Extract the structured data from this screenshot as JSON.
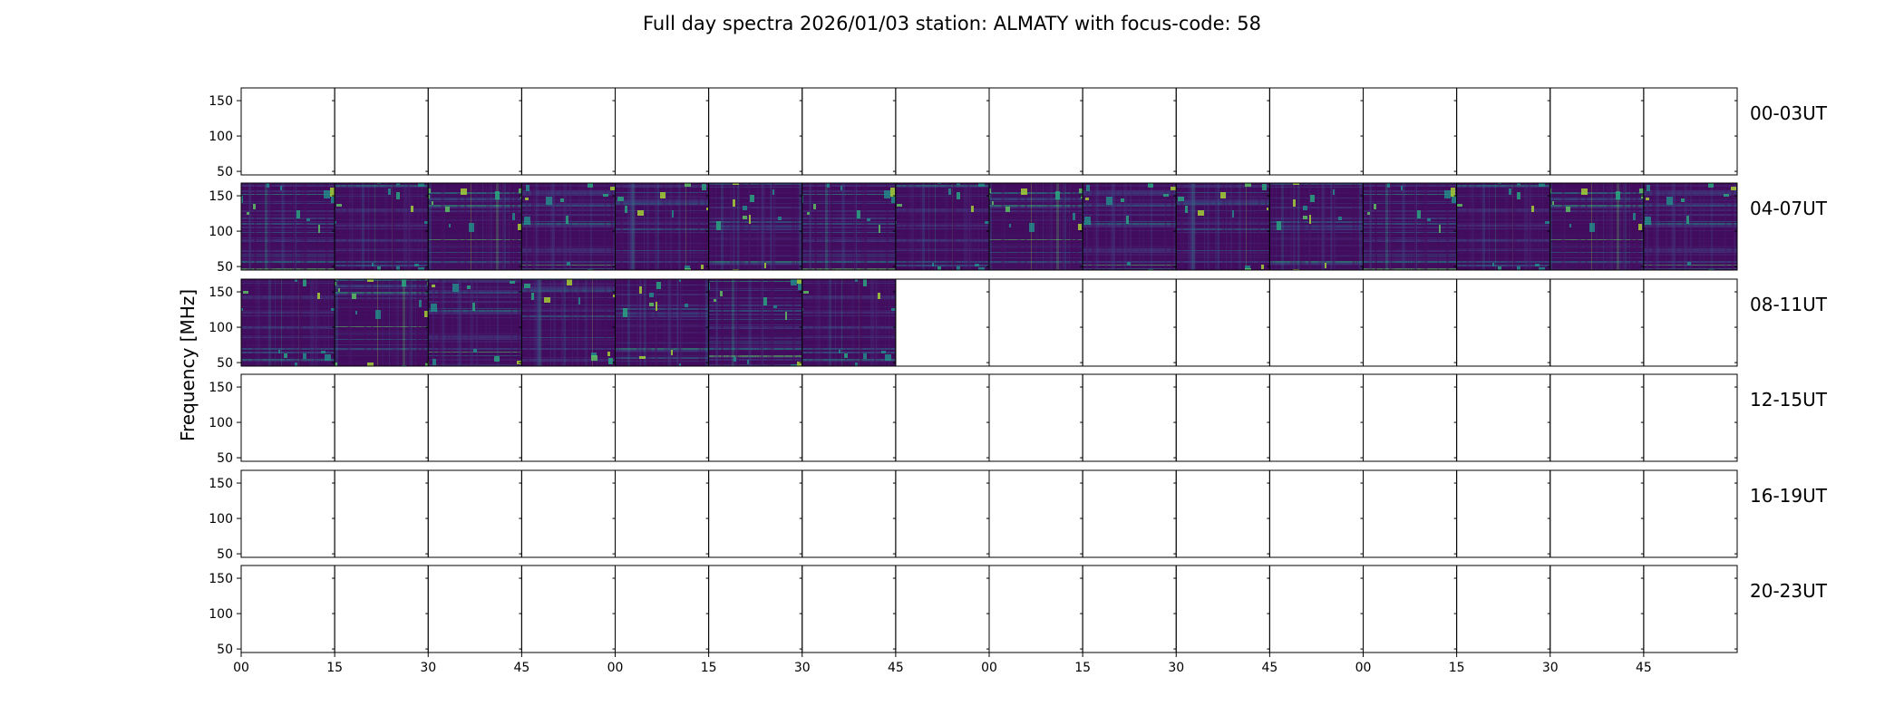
{
  "chart_data": {
    "type": "heatmap",
    "title": "Full day spectra 2026/01/03 station: ALMATY with focus-code: 58",
    "ylabel": "Frequency [MHz]",
    "xlabel": "",
    "ylim": [
      45,
      168
    ],
    "y_ticks": [
      50,
      100,
      150
    ],
    "x_tick_labels": [
      "00",
      "15",
      "30",
      "45",
      "00",
      "15",
      "30",
      "45",
      "00",
      "15",
      "30",
      "45",
      "00",
      "15",
      "30",
      "45"
    ],
    "rows": [
      {
        "label": "00-03UT",
        "panels_with_data": 0
      },
      {
        "label": "04-07UT",
        "panels_with_data": 16
      },
      {
        "label": "08-11UT",
        "panels_with_data": 7
      },
      {
        "label": "12-15UT",
        "panels_with_data": 0
      },
      {
        "label": "16-19UT",
        "panels_with_data": 0
      },
      {
        "label": "20-23UT",
        "panels_with_data": 0
      }
    ],
    "panels_per_row": 16,
    "colormap": "viridis",
    "grid": false
  }
}
